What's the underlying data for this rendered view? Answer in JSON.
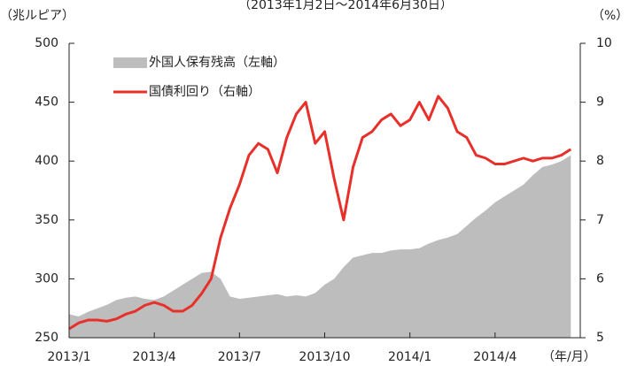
{
  "chart_data": {
    "type": "area-line",
    "subtitle": "（2013年1月2日～2014年6月30日）",
    "y_label": "（兆ルピア）",
    "y2_label": "（%）",
    "x_label": "（年/月）",
    "categories": [
      "2013/1",
      null,
      null,
      null,
      null,
      null,
      null,
      null,
      null,
      "2013/4",
      null,
      null,
      null,
      null,
      null,
      null,
      null,
      null,
      "2013/7",
      null,
      null,
      null,
      null,
      null,
      null,
      null,
      null,
      "2013/10",
      null,
      null,
      null,
      null,
      null,
      null,
      null,
      null,
      "2014/1",
      null,
      null,
      null,
      null,
      null,
      null,
      null,
      null,
      "2014/4",
      null,
      null,
      null,
      null,
      null,
      null,
      null,
      null
    ],
    "ylim": [
      250,
      500
    ],
    "yticks": [
      250,
      300,
      350,
      400,
      450,
      500
    ],
    "y2lim": [
      5,
      10
    ],
    "y2ticks": [
      5,
      6,
      7,
      8,
      9,
      10
    ],
    "series": [
      {
        "name": "外国人保有残高（左軸）",
        "color": "#bdbdbd",
        "kind": "area",
        "values": [
          270,
          268,
          272,
          275,
          278,
          282,
          284,
          285,
          283,
          282,
          285,
          290,
          295,
          300,
          305,
          306,
          300,
          285,
          283,
          284,
          285,
          286,
          287,
          285,
          286,
          285,
          288,
          295,
          300,
          310,
          318,
          320,
          322,
          322,
          324,
          325,
          325,
          326,
          330,
          333,
          335,
          338,
          345,
          352,
          358,
          365,
          370,
          375,
          380,
          388,
          395,
          397,
          400,
          405
        ]
      },
      {
        "name": "国債利回り（右軸）",
        "color": "#e8302a",
        "kind": "line",
        "axis": "y2",
        "values": [
          5.15,
          5.25,
          5.3,
          5.3,
          5.28,
          5.32,
          5.4,
          5.45,
          5.55,
          5.6,
          5.55,
          5.45,
          5.45,
          5.55,
          5.75,
          6.0,
          6.7,
          7.2,
          7.6,
          8.1,
          8.3,
          8.2,
          7.8,
          8.4,
          8.8,
          9.0,
          8.3,
          8.5,
          7.7,
          7.0,
          7.9,
          8.4,
          8.5,
          8.7,
          8.8,
          8.6,
          8.7,
          9.0,
          8.7,
          9.1,
          8.9,
          8.5,
          8.4,
          8.1,
          8.05,
          7.95,
          7.95,
          8.0,
          8.05,
          8.0,
          8.05,
          8.05,
          8.1,
          8.2
        ]
      }
    ]
  }
}
